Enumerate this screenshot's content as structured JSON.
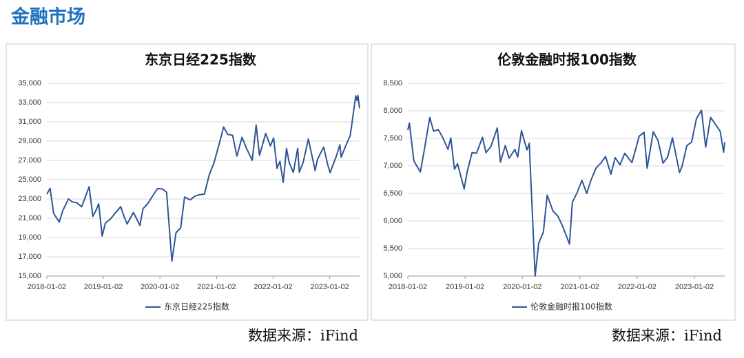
{
  "header": {
    "title": "金融市场"
  },
  "chart_data": [
    {
      "type": "line",
      "title": "东京日经225指数",
      "x": [
        "2018-01-02",
        "2018-01-23",
        "2018-02-15",
        "2018-03-23",
        "2018-04-15",
        "2018-05-21",
        "2018-06-15",
        "2018-07-15",
        "2018-08-15",
        "2018-10-02",
        "2018-10-26",
        "2018-11-15",
        "2018-12-03",
        "2018-12-25",
        "2019-01-15",
        "2019-02-15",
        "2019-03-15",
        "2019-04-24",
        "2019-05-15",
        "2019-06-04",
        "2019-07-15",
        "2019-08-26",
        "2019-09-15",
        "2019-10-15",
        "2019-11-15",
        "2019-12-17",
        "2020-01-17",
        "2020-02-14",
        "2020-03-19",
        "2020-04-15",
        "2020-05-15",
        "2020-06-09",
        "2020-07-15",
        "2020-08-15",
        "2020-09-15",
        "2020-10-15",
        "2020-11-15",
        "2020-12-15",
        "2021-01-15",
        "2021-02-16",
        "2021-03-15",
        "2021-04-15",
        "2021-05-13",
        "2021-06-15",
        "2021-07-15",
        "2021-08-20",
        "2021-09-14",
        "2021-10-06",
        "2021-11-15",
        "2021-12-15",
        "2022-01-05",
        "2022-01-27",
        "2022-02-15",
        "2022-03-08",
        "2022-03-29",
        "2022-04-15",
        "2022-05-12",
        "2022-06-09",
        "2022-06-20",
        "2022-07-15",
        "2022-08-17",
        "2022-09-30",
        "2022-10-15",
        "2022-11-24",
        "2022-12-20",
        "2023-01-04",
        "2023-02-15",
        "2023-03-09",
        "2023-03-17",
        "2023-04-15",
        "2023-05-15",
        "2023-06-19",
        "2023-06-28",
        "2023-07-03",
        "2023-07-14"
      ],
      "series": [
        {
          "name": "东京日经225指数",
          "color": "#2e5597",
          "values": [
            23500,
            24100,
            21500,
            20600,
            21800,
            23000,
            22700,
            22600,
            22200,
            24270,
            21200,
            21800,
            22500,
            19150,
            20500,
            20900,
            21450,
            22200,
            21200,
            20400,
            21600,
            20260,
            21990,
            22500,
            23300,
            24070,
            24040,
            23700,
            16550,
            19500,
            20000,
            23200,
            22900,
            23300,
            23450,
            23500,
            25500,
            26700,
            28500,
            30470,
            29700,
            29600,
            27450,
            29400,
            28200,
            27010,
            30670,
            27530,
            29800,
            28500,
            29330,
            26170,
            26900,
            24720,
            28250,
            26800,
            25750,
            28250,
            25770,
            26800,
            29220,
            25940,
            27100,
            28380,
            26570,
            25720,
            27500,
            28620,
            27330,
            28500,
            29600,
            33710,
            33200,
            33750,
            32400
          ]
        }
      ],
      "xlim": [
        "2018-01-02",
        "2023-07-14"
      ],
      "xticks": [
        "2018-01-02",
        "2019-01-02",
        "2020-01-02",
        "2021-01-02",
        "2022-01-02",
        "2023-01-02"
      ],
      "ylim": [
        15000,
        35000
      ],
      "yticks": [
        {
          "value": 15000,
          "label": "15,000"
        },
        {
          "value": 17000,
          "label": "17,000"
        },
        {
          "value": 19000,
          "label": "19,000"
        },
        {
          "value": 21000,
          "label": "21,000"
        },
        {
          "value": 23000,
          "label": "23,000"
        },
        {
          "value": 25000,
          "label": "25,000"
        },
        {
          "value": 27000,
          "label": "27,000"
        },
        {
          "value": 29000,
          "label": "29,000"
        },
        {
          "value": 31000,
          "label": "31,000"
        },
        {
          "value": 33000,
          "label": "33,000"
        },
        {
          "value": 35000,
          "label": "35,000"
        }
      ],
      "grid": true,
      "legend": "bottom"
    },
    {
      "type": "line",
      "title": "伦敦金融时报100指数",
      "x": [
        "2018-01-02",
        "2018-01-12",
        "2018-02-09",
        "2018-03-23",
        "2018-04-15",
        "2018-05-22",
        "2018-06-15",
        "2018-07-15",
        "2018-08-15",
        "2018-09-15",
        "2018-10-03",
        "2018-10-26",
        "2018-11-15",
        "2018-12-27",
        "2019-01-15",
        "2019-02-15",
        "2019-03-15",
        "2019-04-23",
        "2019-05-15",
        "2019-06-15",
        "2019-07-26",
        "2019-08-15",
        "2019-09-15",
        "2019-10-09",
        "2019-11-15",
        "2019-12-03",
        "2019-12-27",
        "2020-01-31",
        "2020-02-15",
        "2020-03-23",
        "2020-04-15",
        "2020-05-15",
        "2020-06-08",
        "2020-07-15",
        "2020-08-15",
        "2020-09-15",
        "2020-10-28",
        "2020-11-15",
        "2020-12-15",
        "2021-01-15",
        "2021-02-15",
        "2021-03-15",
        "2021-04-15",
        "2021-05-15",
        "2021-06-15",
        "2021-07-19",
        "2021-08-15",
        "2021-09-15",
        "2021-10-15",
        "2021-11-30",
        "2021-12-31",
        "2022-01-15",
        "2022-02-15",
        "2022-03-07",
        "2022-04-15",
        "2022-05-15",
        "2022-06-16",
        "2022-07-15",
        "2022-08-15",
        "2022-09-29",
        "2022-10-15",
        "2022-11-15",
        "2022-12-15",
        "2023-01-15",
        "2023-02-16",
        "2023-03-15",
        "2023-04-15",
        "2023-05-15",
        "2023-06-15",
        "2023-07-07",
        "2023-07-14"
      ],
      "series": [
        {
          "name": "伦敦金融时报100指数",
          "color": "#2e5597",
          "values": [
            7650,
            7780,
            7090,
            6890,
            7260,
            7880,
            7630,
            7660,
            7500,
            7300,
            7510,
            6940,
            7040,
            6580,
            6890,
            7240,
            7230,
            7520,
            7240,
            7350,
            7690,
            7070,
            7370,
            7140,
            7300,
            7160,
            7640,
            7290,
            7410,
            5000,
            5600,
            5800,
            6470,
            6180,
            6090,
            5900,
            5580,
            6340,
            6510,
            6740,
            6500,
            6750,
            6960,
            7050,
            7170,
            6850,
            7150,
            7020,
            7230,
            7060,
            7380,
            7540,
            7610,
            6960,
            7620,
            7460,
            7050,
            7160,
            7510,
            6880,
            6990,
            7370,
            7430,
            7860,
            8010,
            7340,
            7880,
            7760,
            7630,
            7250,
            7430
          ]
        }
      ],
      "xlim": [
        "2018-01-02",
        "2023-07-14"
      ],
      "xticks": [
        "2018-01-02",
        "2019-01-02",
        "2020-01-02",
        "2021-01-02",
        "2022-01-02",
        "2023-01-02"
      ],
      "ylim": [
        5000,
        8500
      ],
      "yticks": [
        {
          "value": 5000,
          "label": "5,000"
        },
        {
          "value": 5500,
          "label": "5,500"
        },
        {
          "value": 6000,
          "label": "6,000"
        },
        {
          "value": 6500,
          "label": "6,500"
        },
        {
          "value": 7000,
          "label": "7,000"
        },
        {
          "value": 7500,
          "label": "7,500"
        },
        {
          "value": 8000,
          "label": "8,000"
        },
        {
          "value": 8500,
          "label": "8,500"
        }
      ],
      "grid": true,
      "legend": "bottom"
    }
  ],
  "sources": [
    "数据来源：iFind",
    "数据来源：iFind"
  ]
}
